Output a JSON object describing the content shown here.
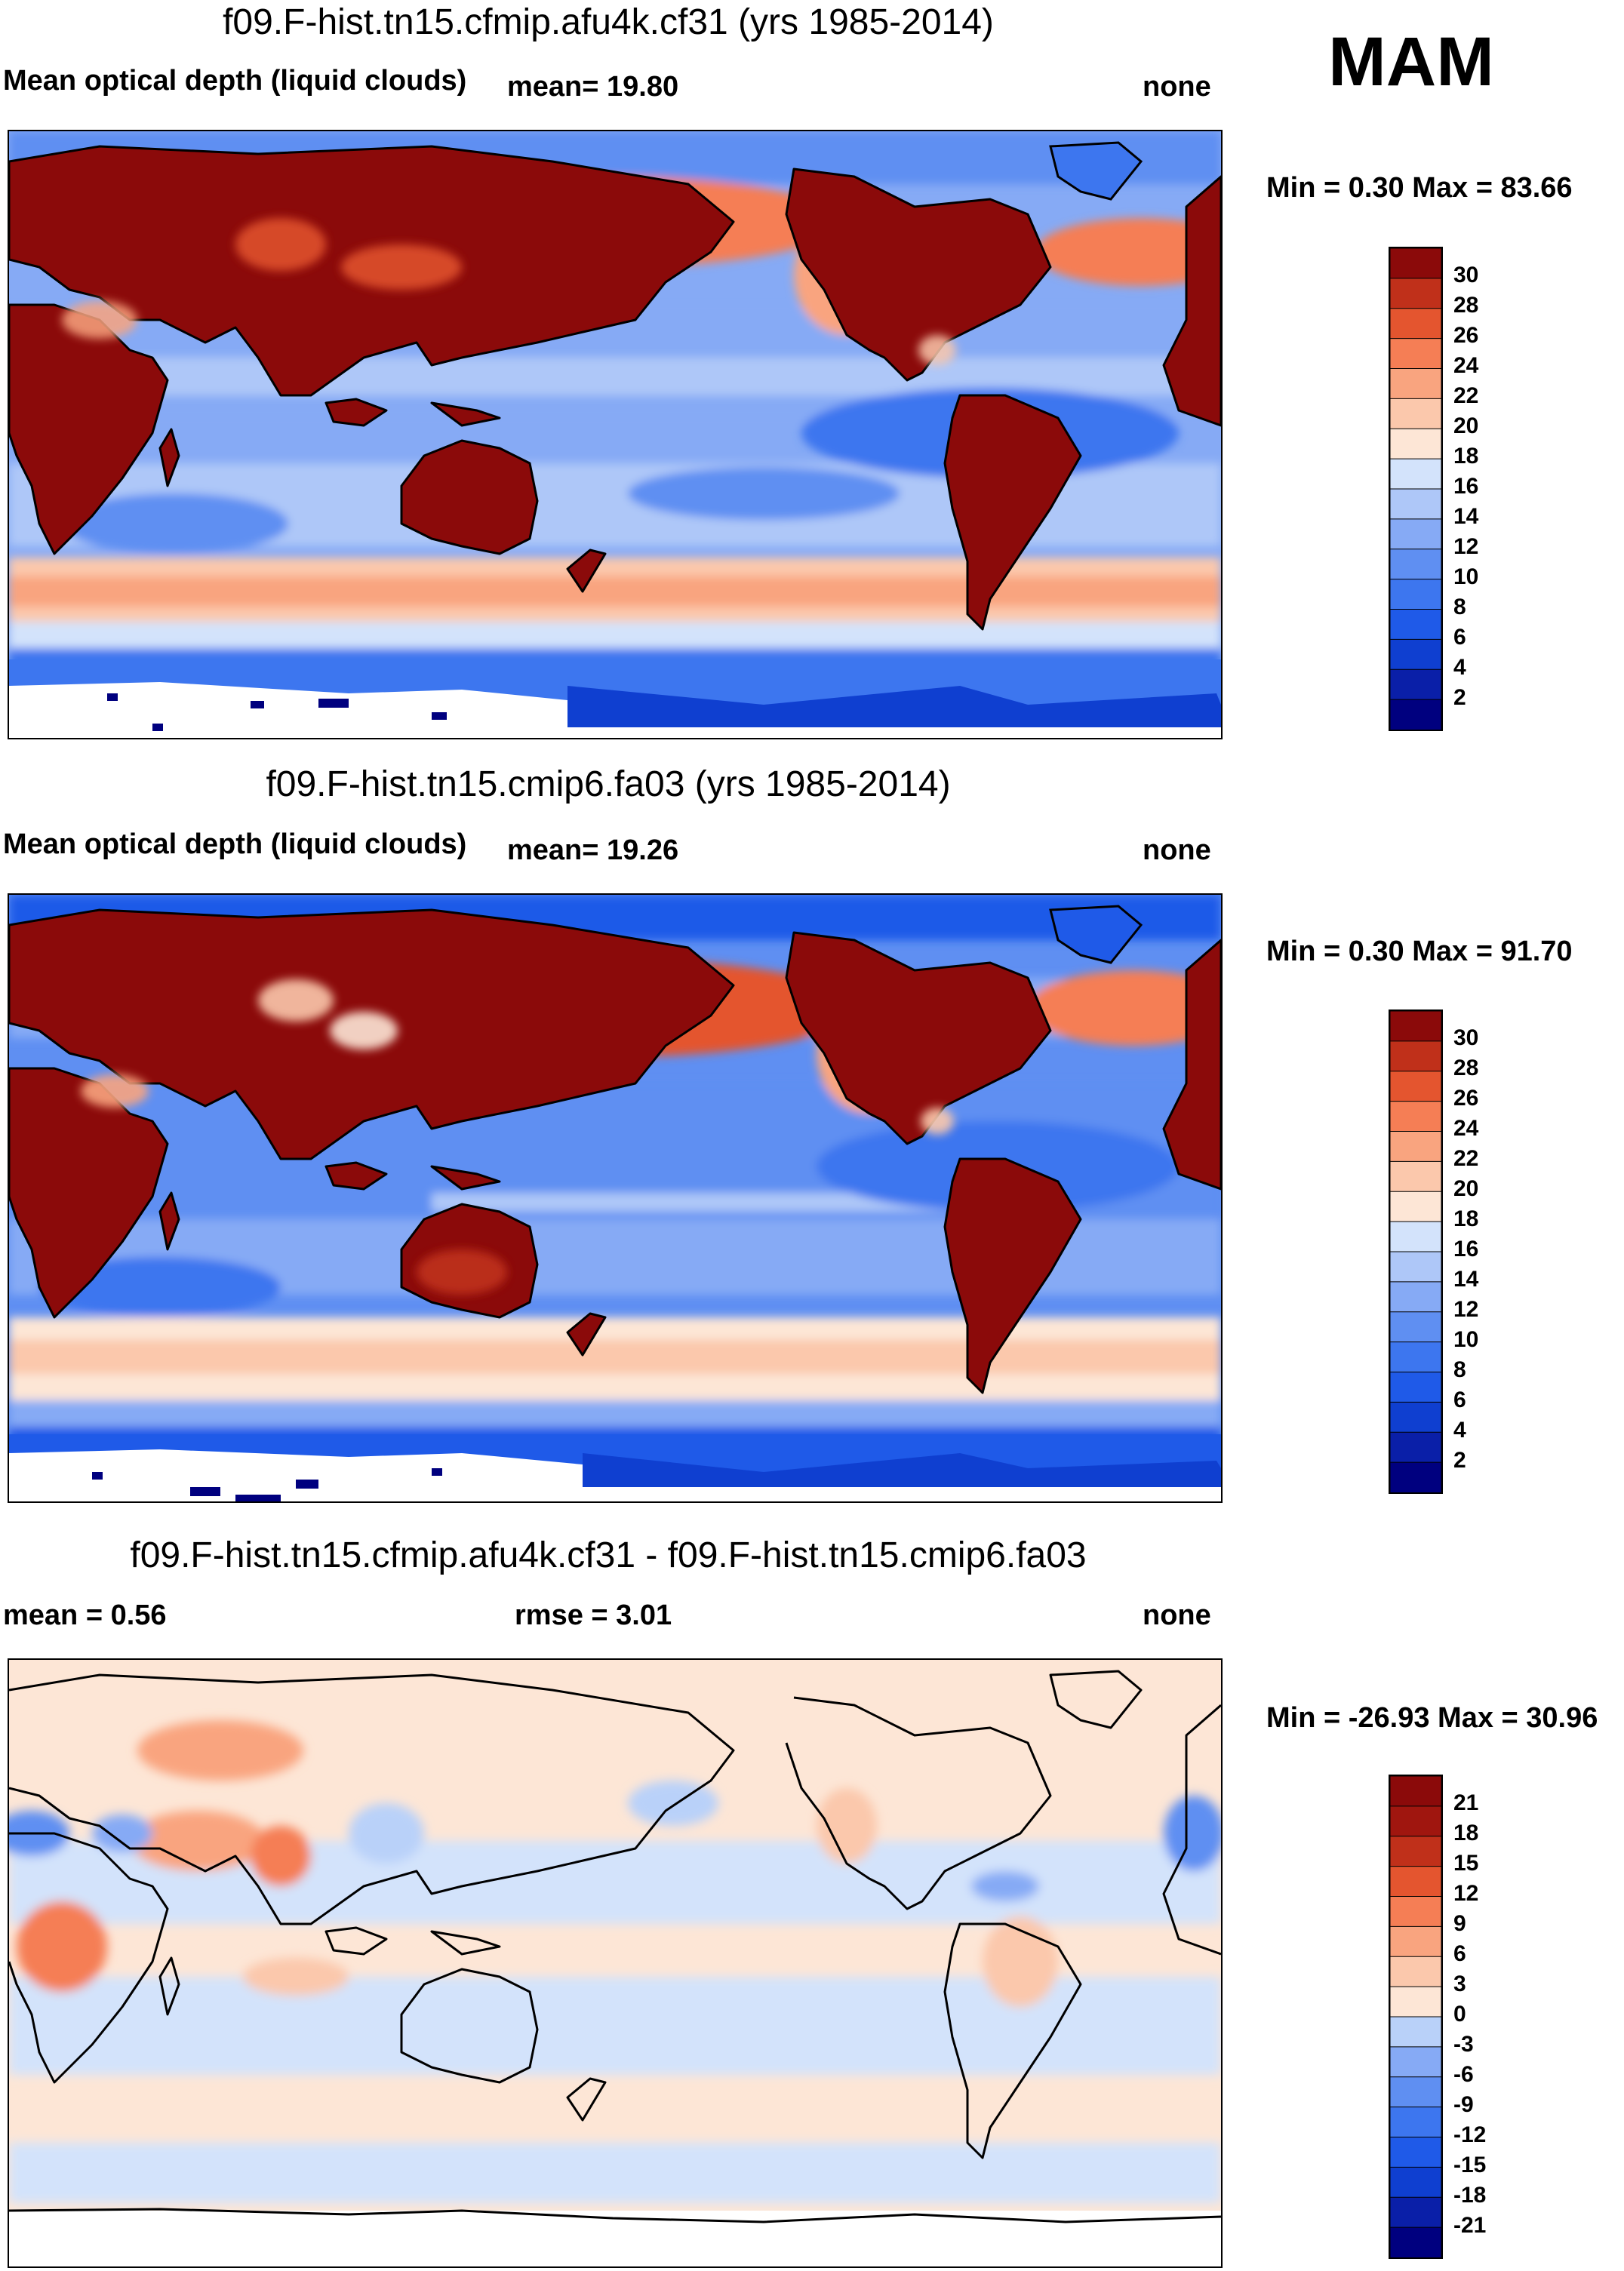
{
  "season": "MAM",
  "panels": [
    {
      "title": "f09.F-hist.tn15.cfmip.afu4k.cf31 (yrs 1985-2014)",
      "left": "Mean optical depth (liquid clouds)",
      "center": "mean=  19.80",
      "right": "none",
      "minmax": "Min =   0.30 Max =  83.66"
    },
    {
      "title": "f09.F-hist.tn15.cmip6.fa03 (yrs 1985-2014)",
      "left": "Mean optical depth (liquid clouds)",
      "center": "mean=  19.26",
      "right": "none",
      "minmax": "Min =   0.30 Max =  91.70"
    },
    {
      "title": "f09.F-hist.tn15.cfmip.afu4k.cf31 - f09.F-hist.tn15.cmip6.fa03",
      "left": "mean =   0.56",
      "center": "rmse =   3.01",
      "right": "none",
      "minmax": "Min = -26.93 Max =  30.96"
    }
  ],
  "chart_data": [
    {
      "type": "heatmap",
      "title": "f09.F-hist.tn15.cfmip.afu4k.cf31 (yrs 1985-2014)",
      "variable": "Mean optical depth (liquid clouds)",
      "mean": 19.8,
      "min": 0.3,
      "max": 83.66,
      "colorbar_levels": [
        2,
        4,
        6,
        8,
        10,
        12,
        14,
        16,
        18,
        20,
        22,
        24,
        26,
        28,
        30
      ],
      "colorbar_labels": [
        "30",
        "28",
        "26",
        "24",
        "22",
        "20",
        "18",
        "16",
        "14",
        "12",
        "10",
        "8",
        "6",
        "4",
        "2"
      ],
      "colors": [
        "#00007f",
        "#0a1fa8",
        "#0f3fd0",
        "#1f5ae8",
        "#3d76ef",
        "#5f8ff2",
        "#86aaf5",
        "#aec7f8",
        "#d3e3fb",
        "#fde6d6",
        "#fbc8ac",
        "#f9a47f",
        "#f57e55",
        "#e4552f",
        "#c0301a",
        "#8b0a0a"
      ]
    },
    {
      "type": "heatmap",
      "title": "f09.F-hist.tn15.cmip6.fa03 (yrs 1985-2014)",
      "variable": "Mean optical depth (liquid clouds)",
      "mean": 19.26,
      "min": 0.3,
      "max": 91.7,
      "colorbar_levels": [
        2,
        4,
        6,
        8,
        10,
        12,
        14,
        16,
        18,
        20,
        22,
        24,
        26,
        28,
        30
      ],
      "colorbar_labels": [
        "30",
        "28",
        "26",
        "24",
        "22",
        "20",
        "18",
        "16",
        "14",
        "12",
        "10",
        "8",
        "6",
        "4",
        "2"
      ],
      "colors": [
        "#00007f",
        "#0a1fa8",
        "#0f3fd0",
        "#1f5ae8",
        "#3d76ef",
        "#5f8ff2",
        "#86aaf5",
        "#aec7f8",
        "#d3e3fb",
        "#fde6d6",
        "#fbc8ac",
        "#f9a47f",
        "#f57e55",
        "#e4552f",
        "#c0301a",
        "#8b0a0a"
      ]
    },
    {
      "type": "heatmap",
      "title": "f09.F-hist.tn15.cfmip.afu4k.cf31 - f09.F-hist.tn15.cmip6.fa03",
      "mean": 0.56,
      "rmse": 3.01,
      "min": -26.93,
      "max": 30.96,
      "colorbar_levels": [
        -21,
        -18,
        -15,
        -12,
        -9,
        -6,
        -3,
        0,
        3,
        6,
        9,
        12,
        15,
        18,
        21
      ],
      "colorbar_labels": [
        "21",
        "18",
        "15",
        "12",
        "9",
        "6",
        "3",
        "0",
        "-3",
        "-6",
        "-9",
        "-12",
        "-15",
        "-18",
        "-21"
      ],
      "colors": [
        "#00007f",
        "#0a1fa8",
        "#0f3fd0",
        "#1f5ae8",
        "#3d76ef",
        "#5f8ff2",
        "#86aaf5",
        "#b9d1f9",
        "#fde6d6",
        "#fbc8ac",
        "#f9a47f",
        "#f57e55",
        "#e4552f",
        "#c0301a",
        "#a0160f",
        "#8b0a0a"
      ]
    }
  ]
}
